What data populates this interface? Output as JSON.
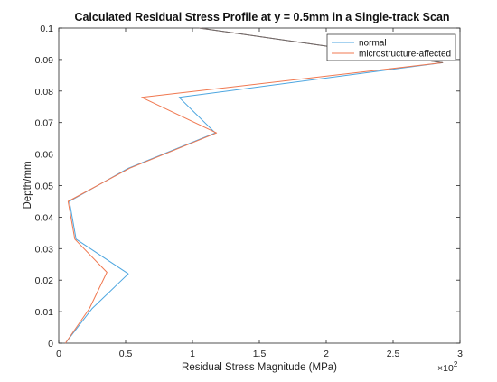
{
  "chart_data": {
    "type": "line",
    "title": "Calculated Residual Stress Profile at y = 0.5mm in a Single-track Scan",
    "xlabel": "Residual Stress Magnitude (MPa)",
    "ylabel": "Depth/mm",
    "x_exponent_label": "×10",
    "x_exponent_power": "2",
    "xlim": [
      0,
      3
    ],
    "ylim": [
      0,
      0.1
    ],
    "xticks": [
      0,
      0.5,
      1,
      1.5,
      2,
      2.5,
      3
    ],
    "xtick_labels": [
      "0",
      "0.5",
      "1",
      "1.5",
      "2",
      "2.5",
      "3"
    ],
    "yticks": [
      0,
      0.01,
      0.02,
      0.03,
      0.04,
      0.05,
      0.06,
      0.07,
      0.08,
      0.09,
      0.1
    ],
    "ytick_labels": [
      "0",
      "0.01",
      "0.02",
      "0.03",
      "0.04",
      "0.05",
      "0.06",
      "0.07",
      "0.08",
      "0.09",
      "0.1"
    ],
    "grid": false,
    "legend_position": "top-right",
    "series": [
      {
        "name": "normal",
        "color": "#4DA6E0",
        "x": [
          0.05,
          0.25,
          0.52,
          0.13,
          0.08,
          0.52,
          1.17,
          0.9,
          2.87,
          1.05
        ],
        "y": [
          0,
          0.011,
          0.022,
          0.033,
          0.045,
          0.0555,
          0.0667,
          0.078,
          0.089,
          0.1
        ]
      },
      {
        "name": "microstructure-affected",
        "color": "#F07850",
        "x": [
          0.05,
          0.23,
          0.36,
          0.12,
          0.07,
          0.53,
          1.18,
          0.62,
          2.87,
          1.05
        ],
        "y": [
          0,
          0.011,
          0.0225,
          0.033,
          0.045,
          0.0555,
          0.0667,
          0.078,
          0.089,
          0.1
        ]
      }
    ]
  }
}
